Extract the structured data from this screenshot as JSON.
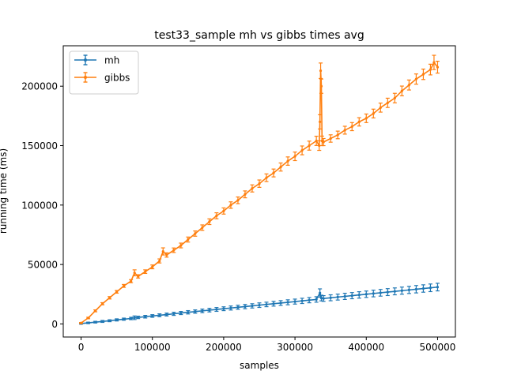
{
  "chart_data": {
    "type": "line",
    "title": "test33_sample mh vs gibbs times avg",
    "xlabel": "samples",
    "ylabel": "running time (ms)",
    "xlim": [
      -25000,
      525000
    ],
    "ylim": [
      -11000,
      234000
    ],
    "xticks": [
      0,
      100000,
      200000,
      300000,
      400000,
      500000
    ],
    "yticks": [
      0,
      50000,
      100000,
      150000,
      200000
    ],
    "legend_position": "upper-left",
    "error_bars": true,
    "series": [
      {
        "name": "mh",
        "color": "#1f77b4",
        "x": [
          0,
          10000,
          20000,
          30000,
          40000,
          50000,
          60000,
          70000,
          75000,
          80000,
          90000,
          100000,
          110000,
          120000,
          130000,
          140000,
          150000,
          160000,
          170000,
          180000,
          190000,
          200000,
          210000,
          220000,
          230000,
          240000,
          250000,
          260000,
          270000,
          280000,
          290000,
          300000,
          310000,
          320000,
          330000,
          335000,
          337000,
          340000,
          350000,
          360000,
          370000,
          380000,
          390000,
          400000,
          410000,
          420000,
          430000,
          440000,
          450000,
          460000,
          470000,
          480000,
          490000,
          500000
        ],
        "values": [
          300,
          900,
          1500,
          2100,
          2700,
          3400,
          4000,
          4600,
          5200,
          5500,
          6100,
          6700,
          7300,
          7900,
          8500,
          9200,
          9800,
          10400,
          11000,
          11600,
          12200,
          12800,
          13400,
          14000,
          14600,
          15200,
          15800,
          16400,
          17000,
          17600,
          18200,
          18800,
          19400,
          20000,
          20600,
          26000,
          21800,
          21400,
          22000,
          22600,
          23200,
          23800,
          24400,
          25000,
          25600,
          26200,
          26800,
          27400,
          28000,
          28600,
          29200,
          29800,
          30400,
          31000
        ],
        "err": [
          500,
          600,
          700,
          800,
          800,
          900,
          900,
          1000,
          1500,
          1000,
          1100,
          1100,
          1200,
          1200,
          1300,
          1300,
          1400,
          1400,
          1500,
          1500,
          1600,
          1600,
          1700,
          1700,
          1800,
          1800,
          1900,
          1900,
          2000,
          2000,
          2100,
          2100,
          2200,
          2200,
          2300,
          3500,
          2400,
          2400,
          2500,
          2500,
          2600,
          2600,
          2700,
          2700,
          2800,
          2800,
          2900,
          2900,
          3000,
          3000,
          3100,
          3100,
          3200,
          3200
        ]
      },
      {
        "name": "gibbs",
        "color": "#ff7f0e",
        "x": [
          0,
          10000,
          20000,
          30000,
          40000,
          50000,
          60000,
          70000,
          75000,
          80000,
          90000,
          100000,
          110000,
          115000,
          120000,
          130000,
          140000,
          150000,
          160000,
          170000,
          180000,
          190000,
          200000,
          210000,
          220000,
          230000,
          240000,
          250000,
          260000,
          270000,
          280000,
          290000,
          300000,
          310000,
          320000,
          330000,
          334000,
          335000,
          336000,
          337000,
          338000,
          340000,
          350000,
          360000,
          370000,
          380000,
          390000,
          400000,
          410000,
          420000,
          430000,
          440000,
          450000,
          460000,
          470000,
          480000,
          490000,
          495000,
          500000
        ],
        "values": [
          800,
          5000,
          11000,
          17000,
          22000,
          27000,
          32000,
          36000,
          43000,
          40000,
          44000,
          48000,
          53000,
          61000,
          58000,
          62000,
          66000,
          71000,
          76000,
          81000,
          86000,
          91000,
          95000,
          100000,
          104000,
          109000,
          114000,
          118000,
          123000,
          127000,
          132000,
          137000,
          141000,
          146000,
          150000,
          154000,
          150000,
          170000,
          213000,
          200000,
          154000,
          153000,
          156000,
          159000,
          163000,
          166000,
          170000,
          173000,
          177000,
          182000,
          186000,
          190000,
          196000,
          201000,
          206000,
          210000,
          214000,
          220000,
          216000
        ],
        "err": [
          400,
          600,
          800,
          900,
          1000,
          1100,
          1200,
          1300,
          2500,
          1400,
          1500,
          1600,
          1700,
          3000,
          1800,
          1900,
          2000,
          2100,
          2200,
          2300,
          2400,
          2500,
          2600,
          2700,
          2800,
          2900,
          3000,
          3100,
          3200,
          3300,
          3400,
          3500,
          3600,
          3700,
          3800,
          3900,
          4000,
          6000,
          6500,
          6000,
          4000,
          3000,
          3100,
          3200,
          3300,
          3400,
          3500,
          3600,
          3700,
          3800,
          3900,
          4000,
          4100,
          4200,
          4300,
          4400,
          4500,
          6000,
          5000
        ]
      }
    ]
  }
}
